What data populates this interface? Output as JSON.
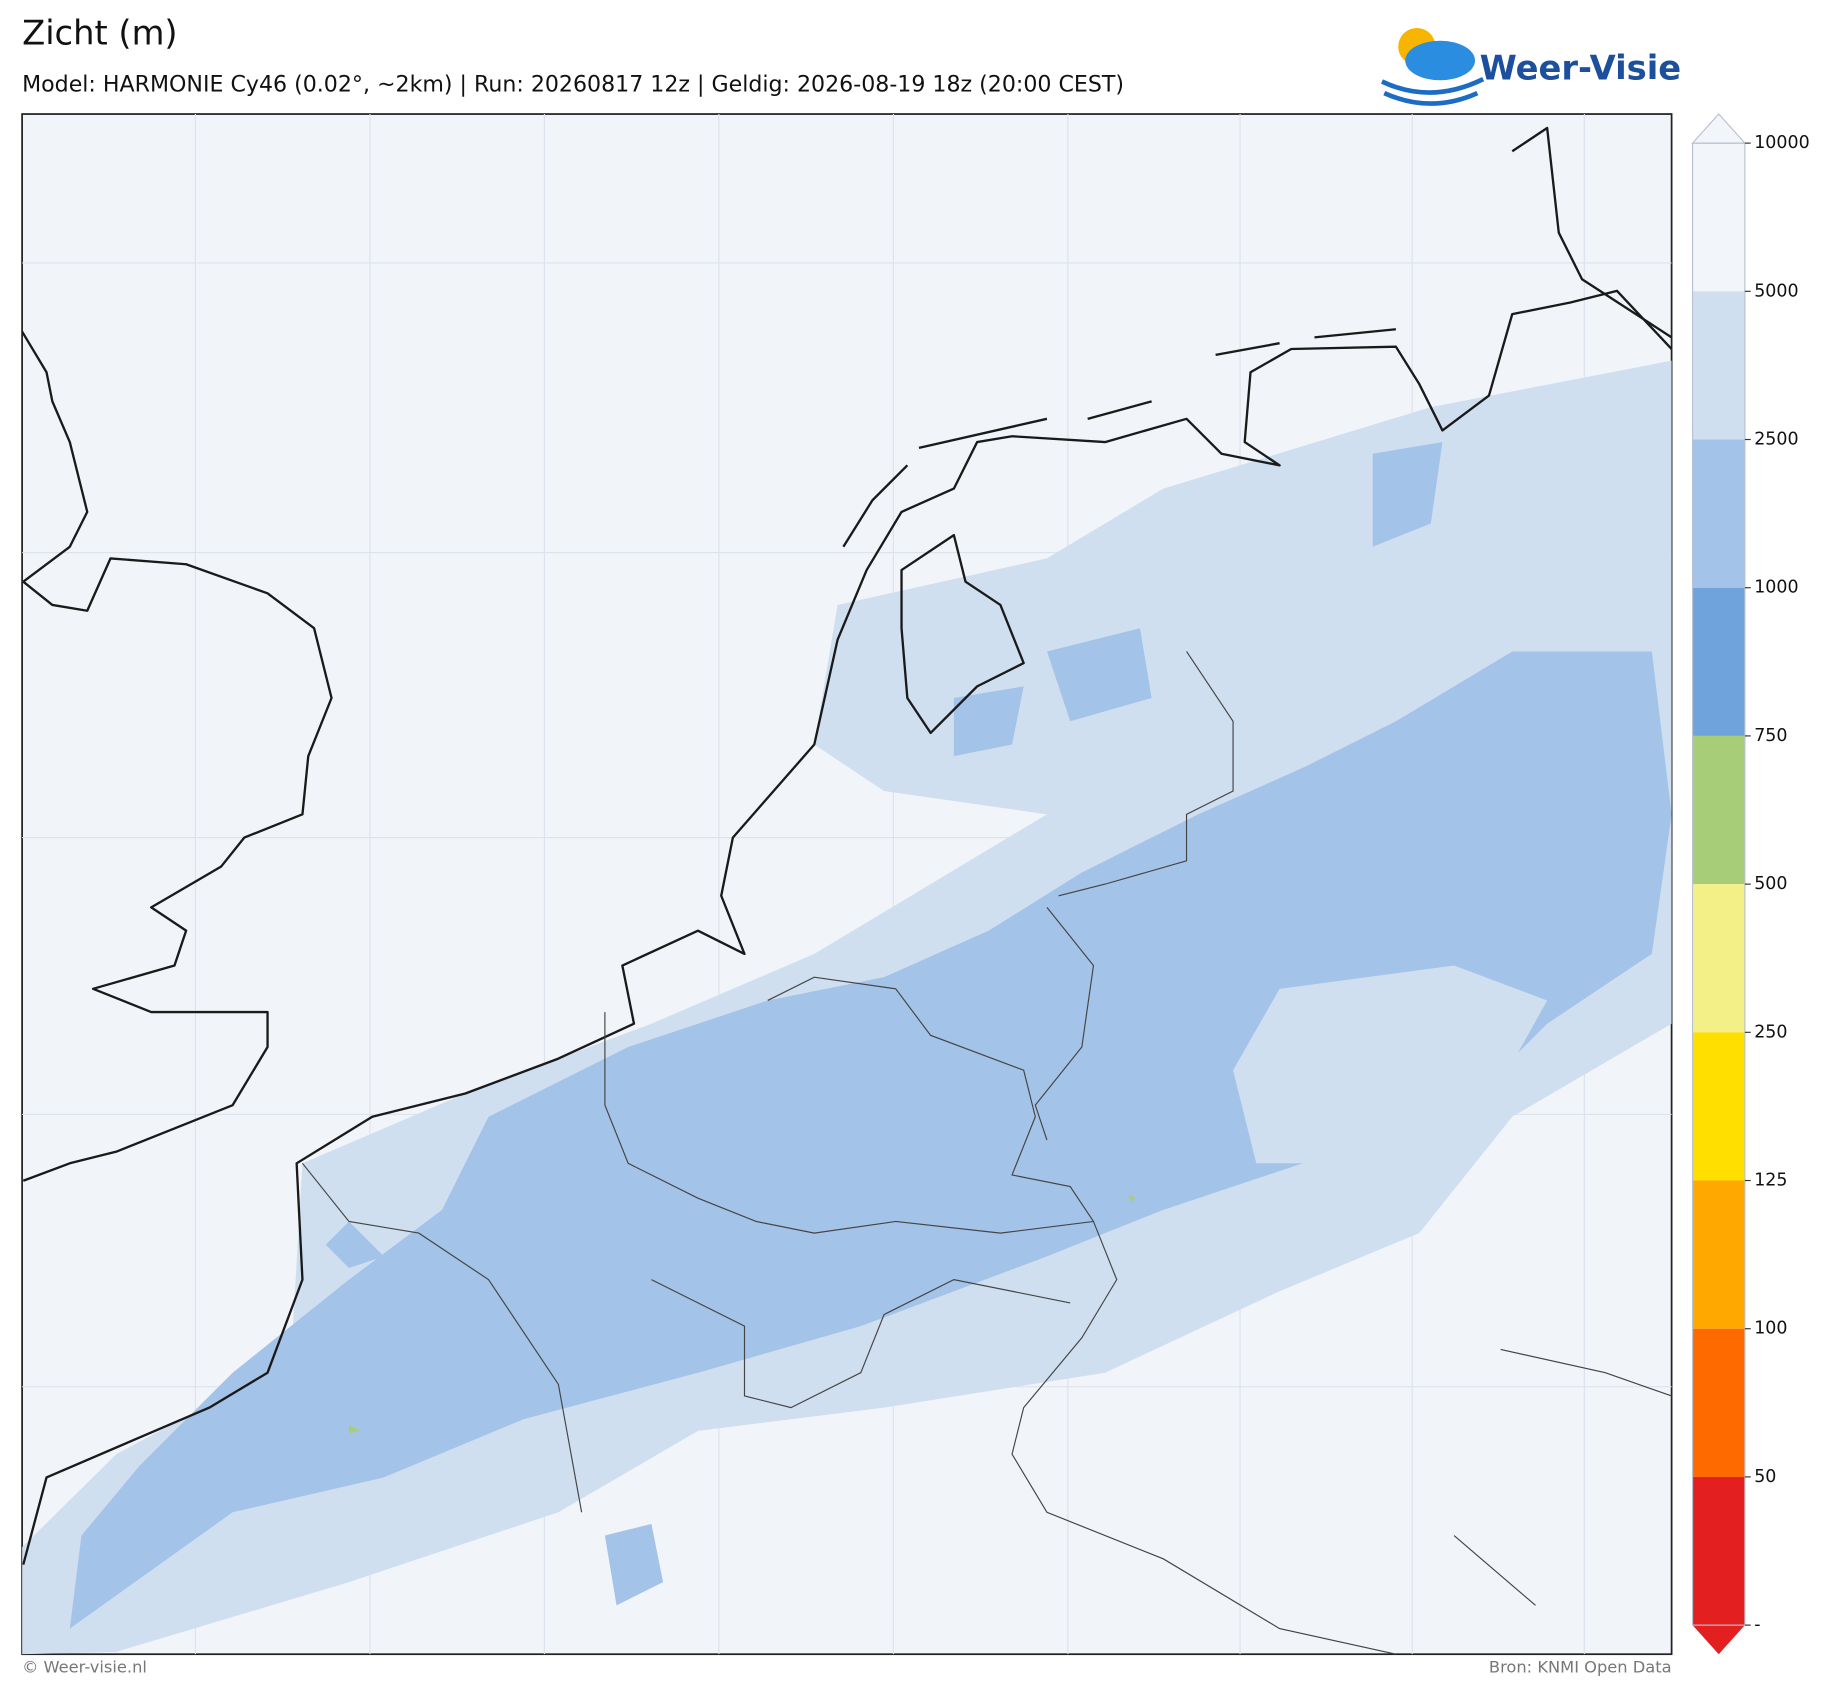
{
  "header": {
    "title": "Zicht (m)",
    "subtitle": "Model: HARMONIE Cy46 (0.02°, ~2km)  |  Run: 20260817 12z  |  Geldig: 2026-08-19 18z (20:00 CEST)"
  },
  "logo": {
    "text": "Weer-Visie"
  },
  "colorbar": {
    "ticks": [
      10000,
      5000,
      2500,
      1000,
      750,
      500,
      250,
      125,
      100,
      50,
      "-"
    ],
    "colors": [
      "#f2f5fa",
      "#cfdff0",
      "#a4c3e8",
      "#6fa3dc",
      "#a8cd78",
      "#f4f088",
      "#ffdf00",
      "#ffa800",
      "#ff6a00",
      "#e31f1f"
    ]
  },
  "footer": {
    "left": "© Weer-visie.nl",
    "right": "Bron: KNMI Open Data"
  }
}
